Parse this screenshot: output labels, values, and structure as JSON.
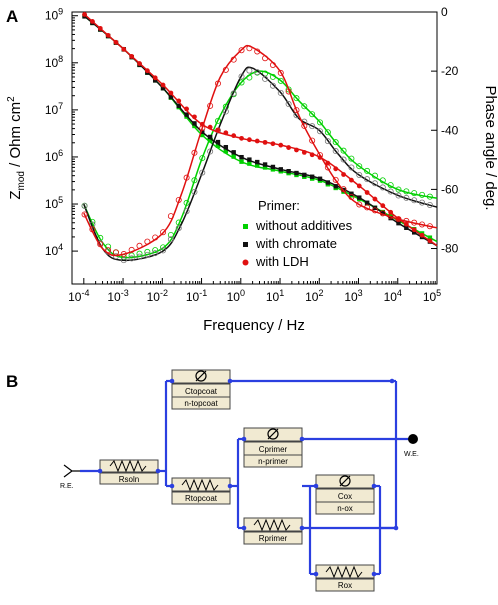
{
  "figure": {
    "panel_a": "A",
    "panel_b": "B"
  },
  "chart_data": {
    "type": "scatter",
    "xlabel": "Frequency / Hz",
    "ylabel": "Z",
    "ylabel_sub": "mod",
    "ylabel_rest": " / Ohm cm",
    "ylabel_sup": "2",
    "y2label": "Phase angle / deg.",
    "xscale": "log",
    "yscale": "log",
    "xlim": [
      5e-05,
      100000.0
    ],
    "ylim": [
      2000.0,
      1200000000.0
    ],
    "y2lim": [
      -92,
      0
    ],
    "x_tick_exponents": [
      "-4",
      "-3",
      "-2",
      "-1",
      "0",
      "1",
      "2",
      "3",
      "4",
      "5"
    ],
    "y_tick_exponents": [
      "4",
      "5",
      "6",
      "7",
      "8",
      "9"
    ],
    "y2_ticks": [
      "0",
      "-20",
      "-40",
      "-60",
      "-80"
    ],
    "grid": false,
    "legend_title": "Primer:",
    "legend_position": "lower-center",
    "series": [
      {
        "name": "without additives",
        "color": "#00d000",
        "impedance": [
          [
            0.0001,
            1000000000.0
          ],
          [
            0.001,
            200000000.0
          ],
          [
            0.01,
            30000000.0
          ],
          [
            0.1,
            3000000.0
          ],
          [
            1.0,
            800000.0
          ],
          [
            10.0,
            500000.0
          ],
          [
            100.0,
            320000.0
          ],
          [
            1000.0,
            130000.0
          ],
          [
            10000.0,
            45000.0
          ],
          [
            100000.0,
            16000.0
          ]
        ],
        "phase": [
          [
            0.0001,
            -65
          ],
          [
            0.0003,
            -78
          ],
          [
            0.001,
            -83
          ],
          [
            0.01,
            -80
          ],
          [
            0.03,
            -70
          ],
          [
            0.1,
            -50
          ],
          [
            0.3,
            -35
          ],
          [
            1.0,
            -24
          ],
          [
            3.0,
            -20
          ],
          [
            10.0,
            -23
          ],
          [
            30.0,
            -30
          ],
          [
            100.0,
            -37
          ],
          [
            300.0,
            -45
          ],
          [
            1000.0,
            -52
          ],
          [
            10000.0,
            -60
          ],
          [
            100000.0,
            -63
          ]
        ]
      },
      {
        "name": "with chromate",
        "color": "#111111",
        "impedance": [
          [
            0.0001,
            1000000000.0
          ],
          [
            0.001,
            200000000.0
          ],
          [
            0.01,
            30000000.0
          ],
          [
            0.1,
            3500000.0
          ],
          [
            1.0,
            1000000.0
          ],
          [
            10.0,
            550000.0
          ],
          [
            100.0,
            350000.0
          ],
          [
            1000.0,
            140000.0
          ],
          [
            10000.0,
            40000.0
          ],
          [
            100000.0,
            13000.0
          ]
        ],
        "phase": [
          [
            0.0001,
            -65
          ],
          [
            0.0003,
            -80
          ],
          [
            0.001,
            -84
          ],
          [
            0.01,
            -81
          ],
          [
            0.03,
            -72
          ],
          [
            0.1,
            -55
          ],
          [
            0.3,
            -38
          ],
          [
            1.0,
            -22
          ],
          [
            2.0,
            -19
          ],
          [
            10.0,
            -27
          ],
          [
            30.0,
            -36
          ],
          [
            100.0,
            -40
          ],
          [
            300.0,
            -48
          ],
          [
            1000.0,
            -55
          ],
          [
            10000.0,
            -62
          ],
          [
            100000.0,
            -66
          ]
        ]
      },
      {
        "name": "with LDH",
        "color": "#e01010",
        "impedance": [
          [
            0.0001,
            1100000000.0
          ],
          [
            0.001,
            200000000.0
          ],
          [
            0.01,
            35000000.0
          ],
          [
            0.1,
            5000000.0
          ],
          [
            1.0,
            2500000.0
          ],
          [
            10.0,
            1800000.0
          ],
          [
            100.0,
            1000000.0
          ],
          [
            1000.0,
            250000.0
          ],
          [
            10000.0,
            50000.0
          ],
          [
            100000.0,
            13000.0
          ]
        ],
        "phase": [
          [
            0.0001,
            -68
          ],
          [
            0.0003,
            -80
          ],
          [
            0.001,
            -82
          ],
          [
            0.01,
            -75
          ],
          [
            0.03,
            -62
          ],
          [
            0.1,
            -40
          ],
          [
            0.3,
            -22
          ],
          [
            1.0,
            -13
          ],
          [
            2.0,
            -12
          ],
          [
            10.0,
            -20
          ],
          [
            30.0,
            -35
          ],
          [
            100.0,
            -48
          ],
          [
            300.0,
            -58
          ],
          [
            1000.0,
            -65
          ],
          [
            10000.0,
            -70
          ],
          [
            100000.0,
            -73
          ]
        ]
      }
    ]
  },
  "circuit": {
    "re": "R.E.",
    "we": "W.E.",
    "elements": {
      "rsoln": "Rsoln",
      "ctopcoat": "Ctopcoat",
      "ntopcoat": "n-topcoat",
      "rtopcoat": "Rtopcoat",
      "cprimer": "Cprimer",
      "nprimer": "n-primer",
      "rprimer": "Rprimer",
      "cox": "Cox",
      "nox": "n-ox",
      "rox": "Rox"
    }
  }
}
